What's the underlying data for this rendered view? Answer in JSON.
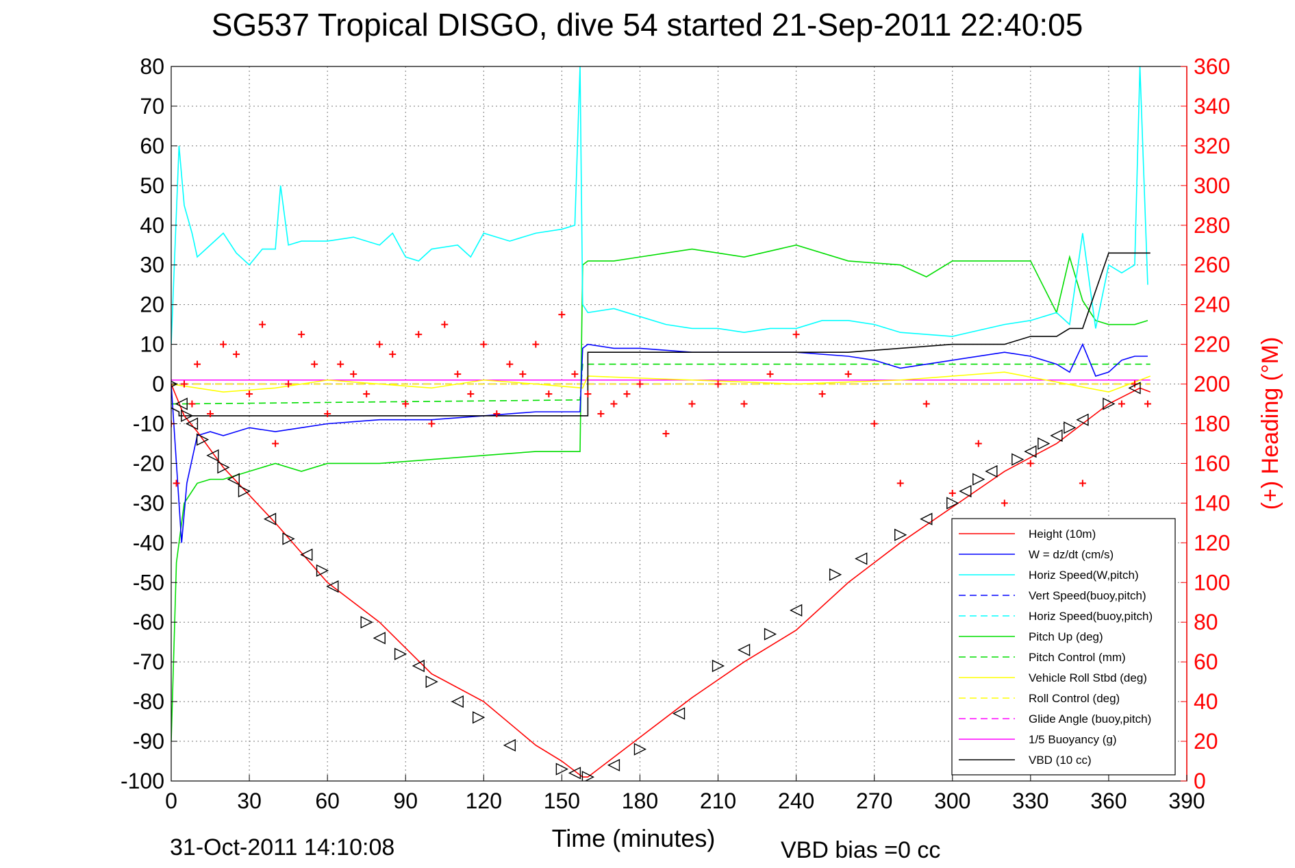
{
  "chart_data": {
    "type": "line",
    "title": "SG537 Tropical DISGO, dive 54 started 21-Sep-2011 22:40:05",
    "xlabel": "Time (minutes)",
    "ylabel_right": "(+) Heading (°M)",
    "footer_date": "31-Oct-2011 14:10:08",
    "footer_note": "VBD bias =0 cc",
    "xlim": [
      0,
      390
    ],
    "ylim": [
      -100,
      80
    ],
    "y2lim": [
      0,
      360
    ],
    "xticks": [
      0,
      30,
      60,
      90,
      120,
      150,
      180,
      210,
      240,
      270,
      300,
      330,
      360,
      390
    ],
    "yticks": [
      -100,
      -90,
      -80,
      -70,
      -60,
      -50,
      -40,
      -30,
      -20,
      -10,
      0,
      10,
      20,
      30,
      40,
      50,
      60,
      70,
      80
    ],
    "y2ticks": [
      0,
      20,
      40,
      60,
      80,
      100,
      120,
      140,
      160,
      180,
      200,
      220,
      240,
      260,
      280,
      300,
      320,
      340,
      360
    ],
    "grid": true,
    "legend_position": "bottom-right",
    "colors": {
      "height": "#ff0000",
      "w": "#0000ff",
      "horiz_w": "#00ffff",
      "vert_buoy": "#0000ff",
      "horiz_buoy": "#00ffff",
      "pitch": "#00dd00",
      "pitch_control": "#00dd00",
      "roll": "#ffff00",
      "roll_control": "#ffff00",
      "glide": "#ff00ff",
      "buoyancy": "#ff00ff",
      "vbd": "#000000",
      "heading": "#ff0000",
      "markers": "#000000"
    },
    "series": [
      {
        "key": "height",
        "name": "Height (10m)",
        "style": "solid",
        "x": [
          0,
          5,
          10,
          20,
          30,
          40,
          60,
          80,
          100,
          120,
          140,
          150,
          158,
          160,
          170,
          180,
          200,
          220,
          240,
          260,
          280,
          300,
          320,
          340,
          360,
          372,
          376
        ],
        "y": [
          0,
          -8,
          -12,
          -21,
          -28,
          -35,
          -50,
          -60,
          -73,
          -80,
          -91,
          -95,
          -99,
          -99,
          -94,
          -89,
          -79,
          -70,
          -62,
          -50,
          -40,
          -31,
          -22,
          -15,
          -5,
          -1,
          -2
        ]
      },
      {
        "key": "w",
        "name": "W = dz/dt (cm/s)",
        "style": "solid",
        "x": [
          0,
          2,
          4,
          6,
          10,
          15,
          20,
          30,
          40,
          50,
          60,
          80,
          100,
          120,
          140,
          150,
          157,
          158,
          160,
          170,
          180,
          200,
          220,
          240,
          260,
          270,
          280,
          300,
          320,
          330,
          340,
          345,
          350,
          355,
          360,
          365,
          370,
          375
        ],
        "y": [
          0,
          -20,
          -40,
          -25,
          -13,
          -12,
          -13,
          -11,
          -12,
          -11,
          -10,
          -9,
          -9,
          -8,
          -7,
          -7,
          -7,
          9,
          10,
          9,
          9,
          8,
          8,
          8,
          7,
          6,
          4,
          6,
          8,
          7,
          5,
          3,
          10,
          2,
          3,
          6,
          7,
          7
        ]
      },
      {
        "key": "horiz_w",
        "name": "Horiz Speed(W,pitch)",
        "style": "solid",
        "x": [
          0,
          3,
          5,
          8,
          10,
          15,
          20,
          25,
          30,
          35,
          40,
          42,
          45,
          50,
          60,
          70,
          80,
          85,
          90,
          95,
          100,
          110,
          115,
          120,
          130,
          140,
          150,
          155,
          157,
          158,
          160,
          170,
          180,
          190,
          200,
          210,
          220,
          230,
          240,
          250,
          260,
          270,
          280,
          300,
          320,
          330,
          340,
          345,
          350,
          355,
          360,
          365,
          370,
          372,
          375
        ],
        "y": [
          10,
          60,
          45,
          38,
          32,
          35,
          38,
          33,
          30,
          34,
          34,
          50,
          35,
          36,
          36,
          37,
          35,
          38,
          32,
          31,
          34,
          35,
          32,
          38,
          36,
          38,
          39,
          40,
          80,
          20,
          18,
          19,
          17,
          15,
          14,
          14,
          13,
          14,
          14,
          16,
          16,
          15,
          13,
          12,
          15,
          16,
          18,
          15,
          38,
          14,
          30,
          28,
          30,
          80,
          25
        ]
      },
      {
        "key": "vert_buoy",
        "name": "Vert Speed(buoy,pitch)",
        "style": "dashed",
        "x": [
          0,
          376
        ],
        "y": [
          0,
          0
        ]
      },
      {
        "key": "horiz_buoy",
        "name": "Horiz Speed(buoy,pitch)",
        "style": "dashed",
        "x": [
          0,
          376
        ],
        "y": [
          0,
          0
        ]
      },
      {
        "key": "pitch",
        "name": "Pitch Up (deg)",
        "style": "solid",
        "x": [
          0,
          2,
          5,
          10,
          15,
          20,
          30,
          40,
          50,
          60,
          62,
          80,
          100,
          120,
          140,
          150,
          157,
          158,
          160,
          170,
          180,
          190,
          200,
          210,
          220,
          240,
          260,
          280,
          290,
          300,
          320,
          330,
          340,
          345,
          350,
          355,
          360,
          370,
          375
        ],
        "y": [
          -90,
          -45,
          -30,
          -25,
          -24,
          -24,
          -22,
          -20,
          -22,
          -20,
          -20,
          -20,
          -19,
          -18,
          -17,
          -17,
          -17,
          30,
          31,
          31,
          32,
          33,
          34,
          33,
          32,
          35,
          31,
          30,
          27,
          31,
          31,
          31,
          18,
          32,
          21,
          16,
          15,
          15,
          16
        ]
      },
      {
        "key": "pitch_control",
        "name": "Pitch Control (mm)",
        "style": "dashed",
        "x": [
          0,
          5,
          157,
          158,
          376
        ],
        "y": [
          -5,
          -5,
          -4,
          5,
          5
        ]
      },
      {
        "key": "roll",
        "name": "Vehicle Roll Stbd (deg)",
        "style": "solid",
        "x": [
          0,
          20,
          40,
          60,
          80,
          100,
          120,
          140,
          158,
          160,
          200,
          240,
          280,
          320,
          360,
          376
        ],
        "y": [
          0,
          -2,
          -1,
          1,
          0,
          -1,
          1,
          0,
          -1,
          2,
          1,
          0,
          1,
          3,
          -2,
          2
        ]
      },
      {
        "key": "roll_control",
        "name": "Roll Control (deg)",
        "style": "dashed",
        "x": [
          0,
          376
        ],
        "y": [
          0,
          0
        ]
      },
      {
        "key": "glide",
        "name": "Glide Angle (buoy,pitch)",
        "style": "dashed",
        "x": [
          0,
          376
        ],
        "y": [
          0,
          0
        ]
      },
      {
        "key": "buoyancy",
        "name": "1/5 Buoyancy (g)",
        "style": "solid",
        "x": [
          0,
          376
        ],
        "y": [
          1,
          1
        ]
      },
      {
        "key": "vbd",
        "name": "VBD (10 cc)",
        "style": "solid",
        "x": [
          0,
          3,
          3,
          158,
          160,
          160,
          260,
          300,
          320,
          330,
          340,
          345,
          350,
          360,
          376
        ],
        "y": [
          -6,
          -7,
          -8,
          -8,
          -8,
          8,
          8,
          10,
          10,
          12,
          12,
          14,
          14,
          33,
          33
        ]
      },
      {
        "key": "heading",
        "name": "(+) Heading",
        "axis": "right",
        "style": "markers",
        "x": [
          0,
          2,
          5,
          8,
          10,
          15,
          20,
          25,
          30,
          35,
          40,
          45,
          50,
          55,
          60,
          65,
          70,
          75,
          80,
          85,
          90,
          95,
          100,
          105,
          110,
          115,
          120,
          125,
          130,
          135,
          140,
          145,
          150,
          155,
          160,
          165,
          170,
          175,
          180,
          190,
          200,
          210,
          220,
          230,
          240,
          250,
          260,
          270,
          280,
          290,
          300,
          310,
          320,
          330,
          340,
          350,
          360,
          365,
          370,
          375
        ],
        "y": [
          180,
          150,
          200,
          190,
          210,
          185,
          220,
          215,
          195,
          230,
          170,
          200,
          225,
          210,
          185,
          210,
          205,
          195,
          220,
          215,
          190,
          225,
          180,
          230,
          205,
          195,
          220,
          185,
          210,
          205,
          220,
          195,
          235,
          205,
          195,
          185,
          190,
          195,
          200,
          175,
          190,
          200,
          190,
          205,
          225,
          195,
          205,
          180,
          150,
          190,
          145,
          170,
          140,
          160,
          130,
          150,
          130,
          190,
          200,
          190
        ]
      }
    ],
    "markers": {
      "shape": "triangle",
      "x": [
        0,
        4,
        6,
        8,
        12,
        16,
        20,
        24,
        28,
        38,
        45,
        52,
        58,
        62,
        75,
        80,
        88,
        95,
        100,
        110,
        118,
        130,
        150,
        155,
        160,
        170,
        180,
        195,
        210,
        220,
        230,
        240,
        255,
        265,
        280,
        290,
        300,
        305,
        310,
        315,
        325,
        330,
        335,
        340,
        345,
        350,
        360,
        370
      ],
      "y": [
        0,
        -5,
        -8,
        -10,
        -14,
        -18,
        -21,
        -24,
        -27,
        -34,
        -39,
        -43,
        -47,
        -51,
        -60,
        -64,
        -68,
        -71,
        -75,
        -80,
        -84,
        -91,
        -97,
        -98,
        -99,
        -96,
        -92,
        -83,
        -71,
        -67,
        -63,
        -57,
        -48,
        -44,
        -38,
        -34,
        -30,
        -27,
        -24,
        -22,
        -19,
        -17,
        -15,
        -13,
        -11,
        -9,
        -5,
        -1
      ]
    }
  }
}
